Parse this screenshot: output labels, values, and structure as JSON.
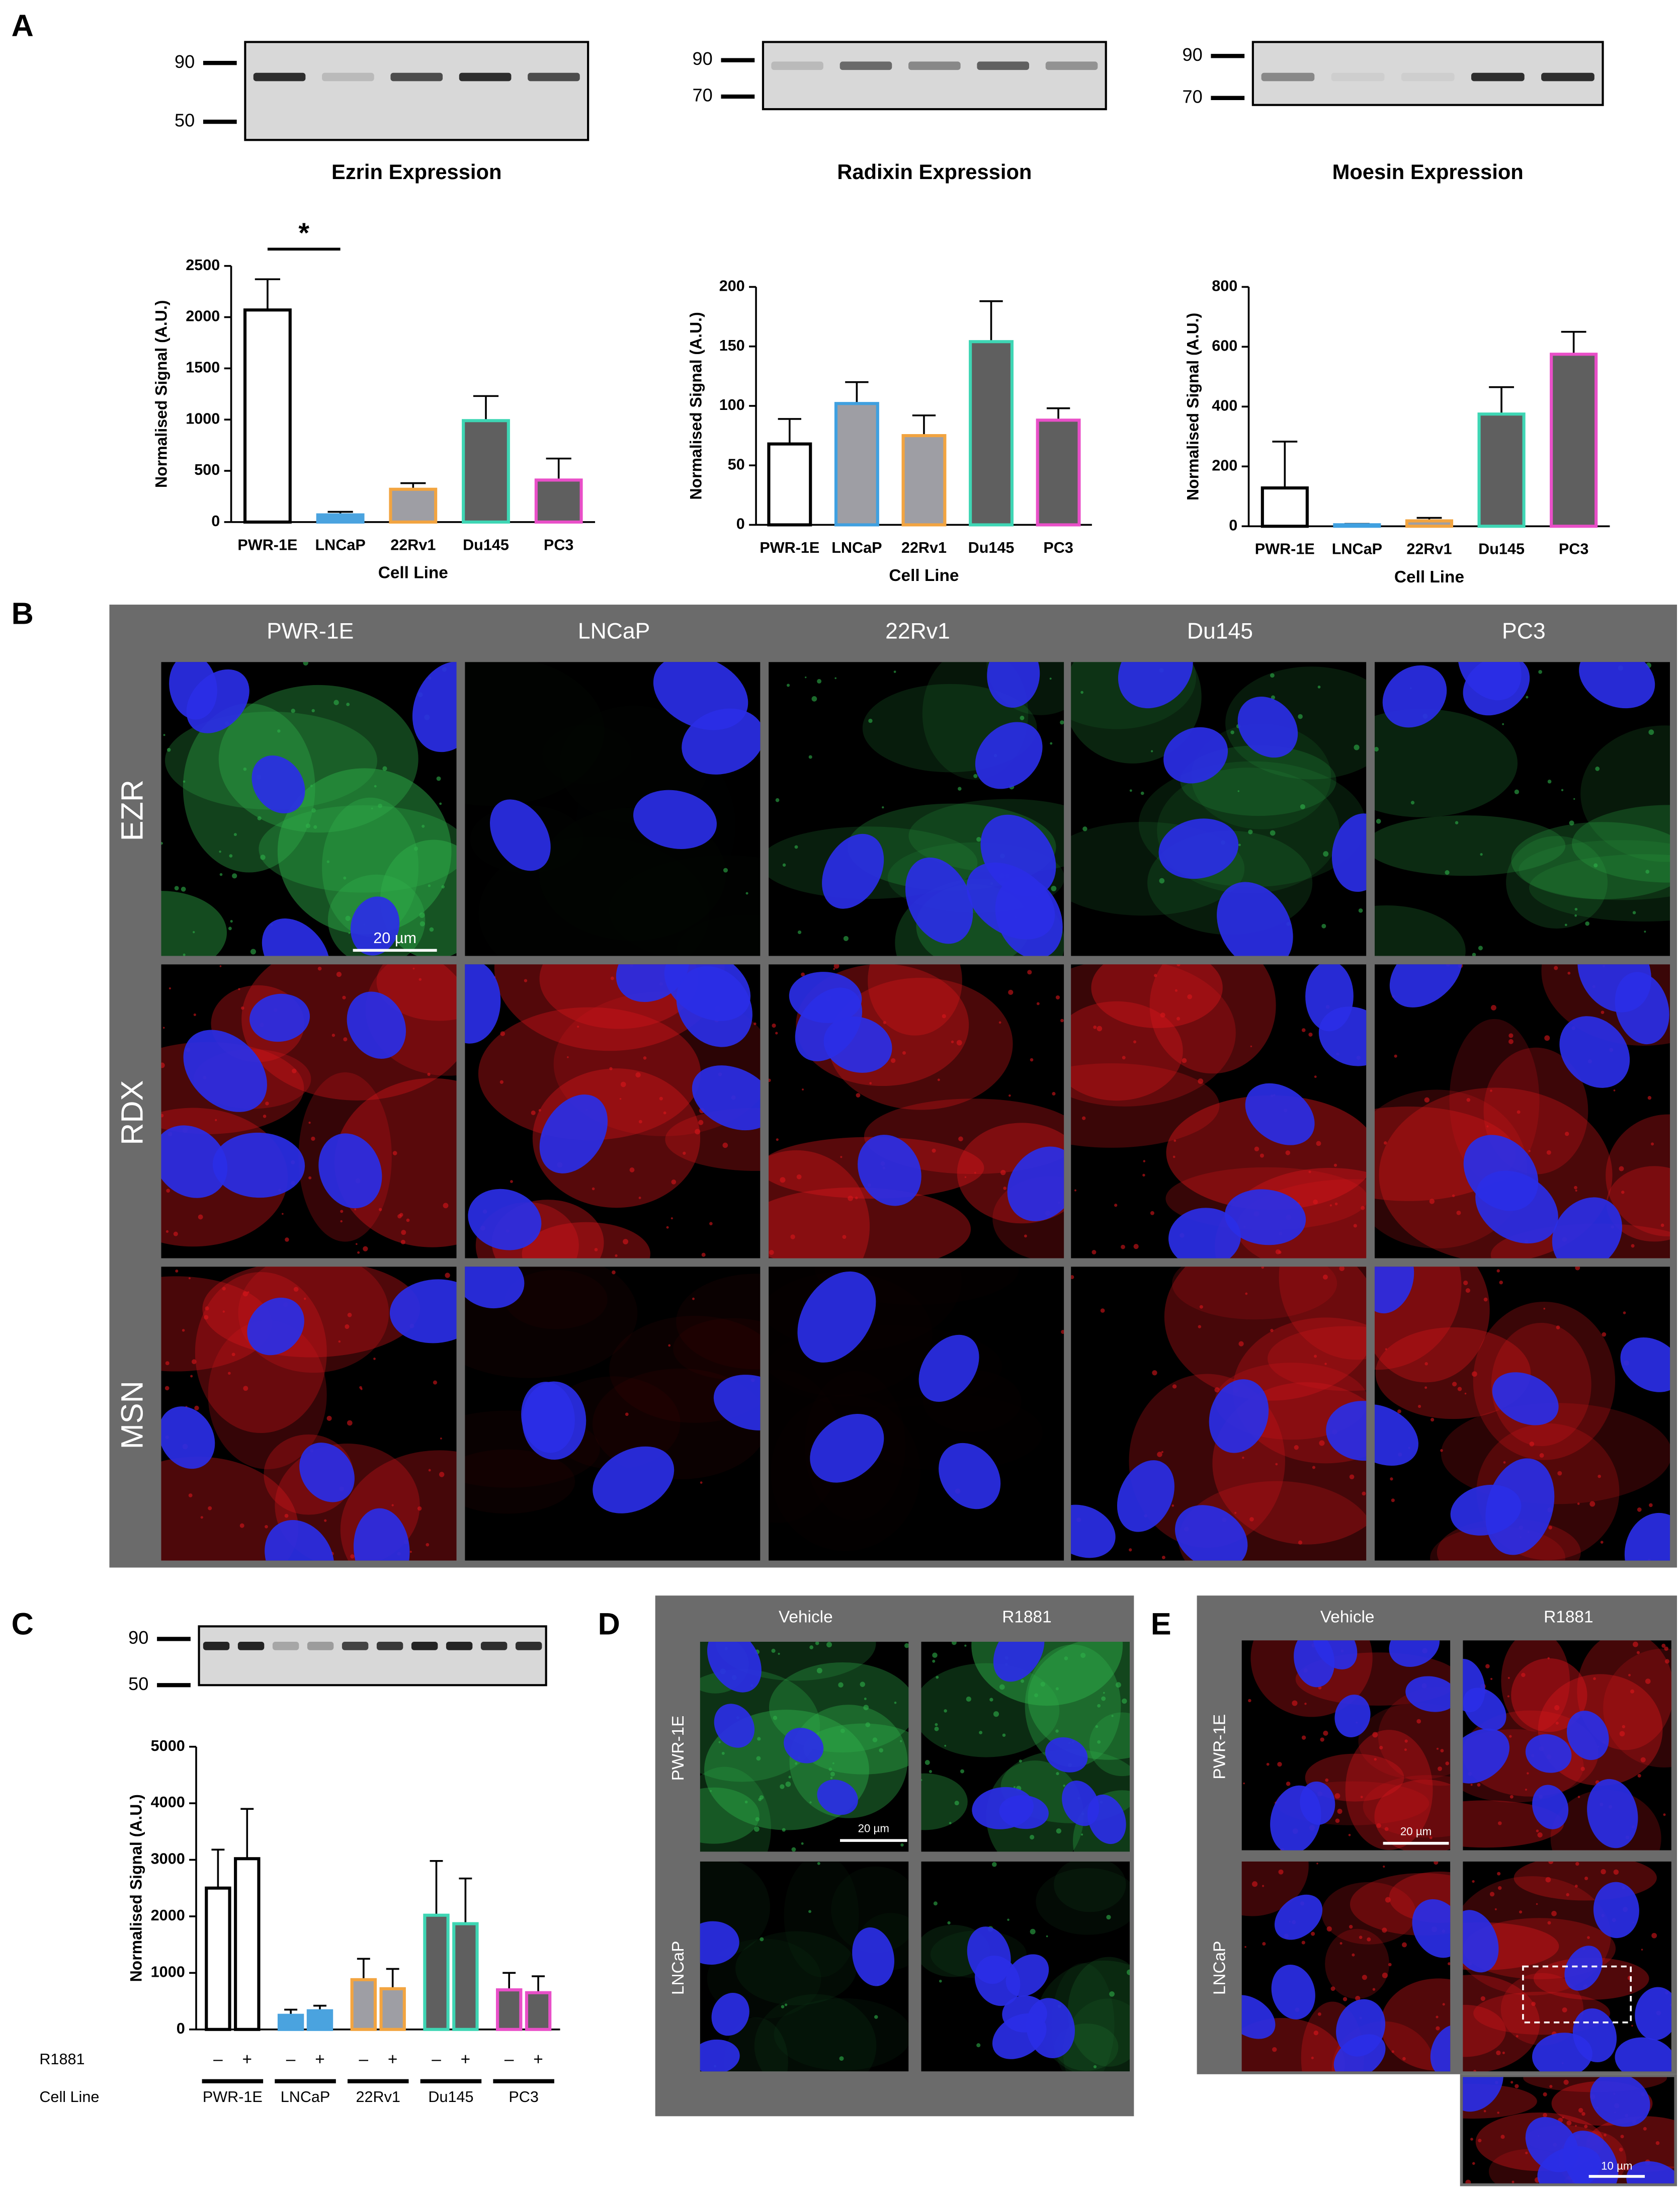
{
  "panel_labels": [
    "A",
    "B",
    "C",
    "D",
    "E"
  ],
  "blots": [
    {
      "markers": [
        90,
        50
      ]
    },
    {
      "markers": [
        90,
        70
      ]
    },
    {
      "markers": [
        90,
        70
      ]
    },
    {
      "markers": [
        90,
        50
      ]
    }
  ],
  "chart_data": [
    {
      "type": "bar",
      "title": "Ezrin Expression",
      "xlabel": "Cell Line",
      "ylabel": "Normalised Signal (A.U.)",
      "categories": [
        "PWR-1E",
        "LNCaP",
        "22Rv1",
        "Du145",
        "PC3"
      ],
      "values": [
        2070,
        70,
        320,
        990,
        410
      ],
      "errors": [
        300,
        30,
        60,
        240,
        210
      ],
      "colors": [
        "#ffffff",
        "#4aa3df",
        "#9e9ea4",
        "#5f5f5f",
        "#5f5f5f"
      ],
      "edgecolors": [
        "#000000",
        "#4aa3df",
        "#f2a440",
        "#3ed6b4",
        "#e94fc8"
      ],
      "ylim": [
        0,
        2500
      ],
      "yticks": [
        0,
        500,
        1000,
        1500,
        2000,
        2500
      ],
      "annotation": "*"
    },
    {
      "type": "bar",
      "title": "Radixin Expression",
      "xlabel": "Cell Line",
      "ylabel": "Normalised Signal (A.U.)",
      "categories": [
        "PWR-1E",
        "LNCaP",
        "22Rv1",
        "Du145",
        "PC3"
      ],
      "values": [
        68,
        102,
        75,
        154,
        88
      ],
      "errors": [
        21,
        18,
        17,
        34,
        10
      ],
      "colors": [
        "#ffffff",
        "#9e9ea4",
        "#9e9ea4",
        "#5f5f5f",
        "#5f5f5f"
      ],
      "edgecolors": [
        "#000000",
        "#3fa0e0",
        "#f2a440",
        "#3ed6b4",
        "#e94fc8"
      ],
      "ylim": [
        0,
        200
      ],
      "yticks": [
        0,
        50,
        100,
        150,
        200
      ]
    },
    {
      "type": "bar",
      "title": "Moesin Expression",
      "xlabel": "Cell Line",
      "ylabel": "Normalised Signal (A.U.)",
      "categories": [
        "PWR-1E",
        "LNCaP",
        "22Rv1",
        "Du145",
        "PC3"
      ],
      "values": [
        128,
        5,
        18,
        375,
        575
      ],
      "errors": [
        155,
        3,
        10,
        90,
        75
      ],
      "colors": [
        "#ffffff",
        "#9e9ea4",
        "#9e9ea4",
        "#5f5f5f",
        "#5f5f5f"
      ],
      "edgecolors": [
        "#000000",
        "#3fa0e0",
        "#f2a440",
        "#3ed6b4",
        "#e94fc8"
      ],
      "ylim": [
        0,
        800
      ],
      "yticks": [
        0,
        200,
        400,
        600,
        800
      ]
    },
    {
      "type": "bar",
      "ylabel": "Normalised Signal (A.U.)",
      "row_labels": [
        "R1881",
        "Cell Line"
      ],
      "groups": [
        "PWR-1E",
        "LNCaP",
        "22Rv1",
        "Du145",
        "PC3"
      ],
      "categories": [
        "–",
        "+",
        "–",
        "+",
        "–",
        "+",
        "–",
        "+",
        "–",
        "+"
      ],
      "values": [
        2500,
        3020,
        250,
        330,
        880,
        720,
        2020,
        1870,
        700,
        650
      ],
      "errors": [
        680,
        880,
        100,
        90,
        370,
        350,
        960,
        800,
        300,
        290
      ],
      "colors": [
        "#ffffff",
        "#ffffff",
        "#4aa3df",
        "#4aa3df",
        "#9e9ea4",
        "#9e9ea4",
        "#5f5f5f",
        "#5f5f5f",
        "#5f5f5f",
        "#5f5f5f"
      ],
      "edgecolors": [
        "#000000",
        "#000000",
        "#4aa3df",
        "#4aa3df",
        "#f2a440",
        "#f2a440",
        "#3ed6b4",
        "#3ed6b4",
        "#e94fc8",
        "#e94fc8"
      ],
      "ylim": [
        0,
        5000
      ],
      "yticks": [
        0,
        1000,
        2000,
        3000,
        4000,
        5000
      ]
    }
  ],
  "micrographs": [
    {
      "columns": [
        "PWR-1E",
        "LNCaP",
        "22Rv1",
        "Du145",
        "PC3"
      ],
      "rows": [
        "EZR",
        "RDX",
        "MSN"
      ],
      "scale_bar": "20 µm"
    },
    {
      "columns": [
        "Vehicle",
        "R1881"
      ],
      "rows": [
        "PWR-1E",
        "LNCaP"
      ],
      "scale_bar": "20 µm"
    },
    {
      "columns": [
        "Vehicle",
        "R1881"
      ],
      "rows": [
        "PWR-1E",
        "LNCaP"
      ],
      "scale_bar": "20 µm",
      "inset_scale_bar": "10 µm"
    }
  ]
}
